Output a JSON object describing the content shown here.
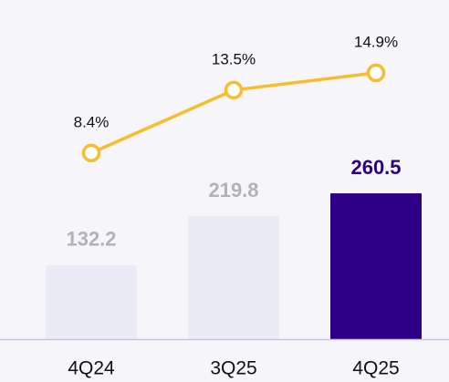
{
  "chart_data": {
    "type": "combo",
    "categories": [
      "4Q24",
      "3Q25",
      "4Q25"
    ],
    "ylim": [
      0,
      500
    ],
    "y2lim": [
      -6.7,
      16
    ],
    "series": [
      {
        "type": "bar",
        "values": [
          132.2,
          219.8,
          260.5
        ],
        "colors": [
          "#ebebf7",
          "#ebebf7",
          "#2e0088"
        ],
        "label_colors": [
          "#b2b2ba",
          "#b2b2ba",
          "#2e0088"
        ]
      },
      {
        "type": "line",
        "axis": "y2",
        "color": "#f6be2c",
        "values": [
          8.4,
          13.5,
          14.9
        ],
        "value_labels": [
          "8.4%",
          "13.5%",
          "14.9%"
        ]
      }
    ]
  }
}
